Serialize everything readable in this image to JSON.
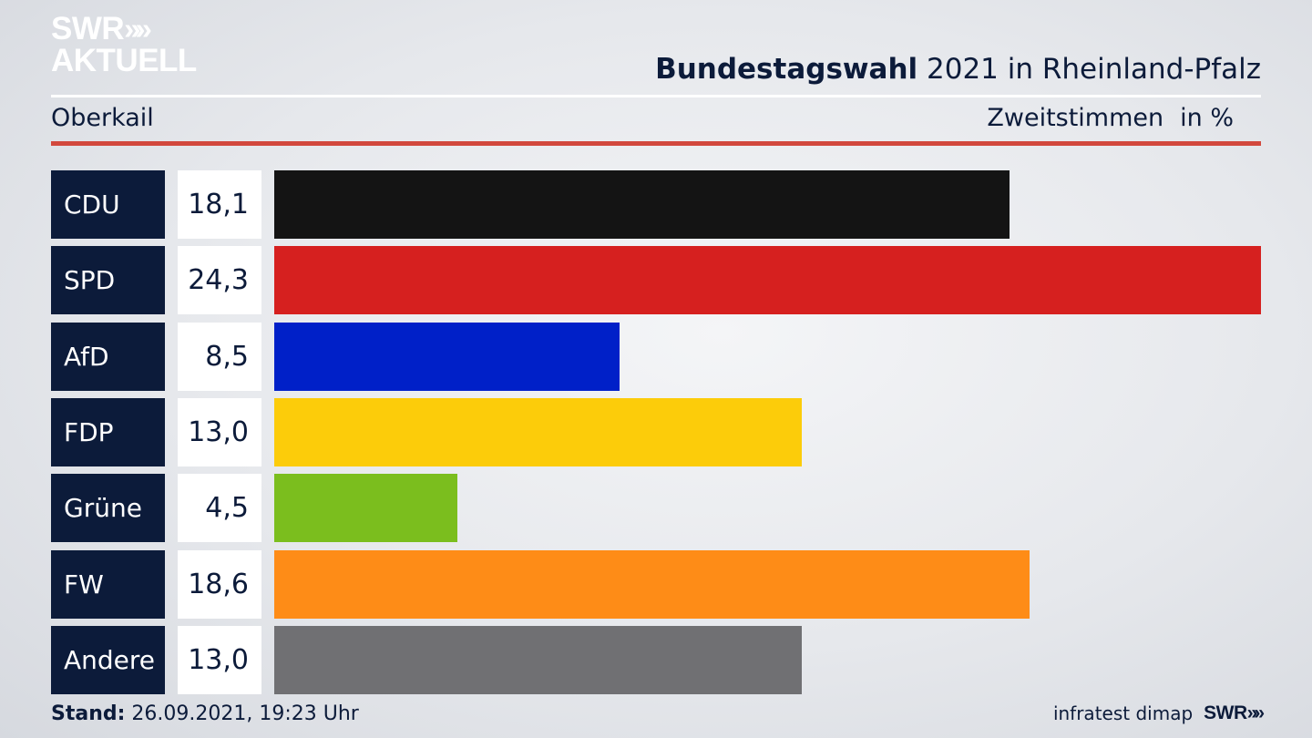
{
  "logo": {
    "line1": "SWR",
    "chevrons": "»»",
    "line2": "AKTUELL"
  },
  "header": {
    "title_bold": "Bundestagswahl",
    "title_rest": " 2021 in Rheinland-Pfalz",
    "region": "Oberkail",
    "measure": "Zweitstimmen",
    "unit": "in %"
  },
  "chart_data": {
    "type": "bar",
    "orientation": "horizontal",
    "categories": [
      "CDU",
      "SPD",
      "AfD",
      "FDP",
      "Grüne",
      "FW",
      "Andere"
    ],
    "values": [
      18.1,
      24.3,
      8.5,
      13.0,
      4.5,
      18.6,
      13.0
    ],
    "value_labels": [
      "18,1",
      "24,3",
      "8,5",
      "13,0",
      "4,5",
      "18,6",
      "13,0"
    ],
    "colors": [
      "#141414",
      "#d6201f",
      "#0020c8",
      "#fccc0a",
      "#7bbe1e",
      "#fe8c17",
      "#707073"
    ],
    "xlim": [
      0,
      24.3
    ]
  },
  "footer": {
    "stand_label": "Stand:",
    "stand_value": " 26.09.2021, 19:23 Uhr",
    "source": "infratest dimap",
    "brand": "SWR",
    "brand_chevrons": "»»"
  }
}
